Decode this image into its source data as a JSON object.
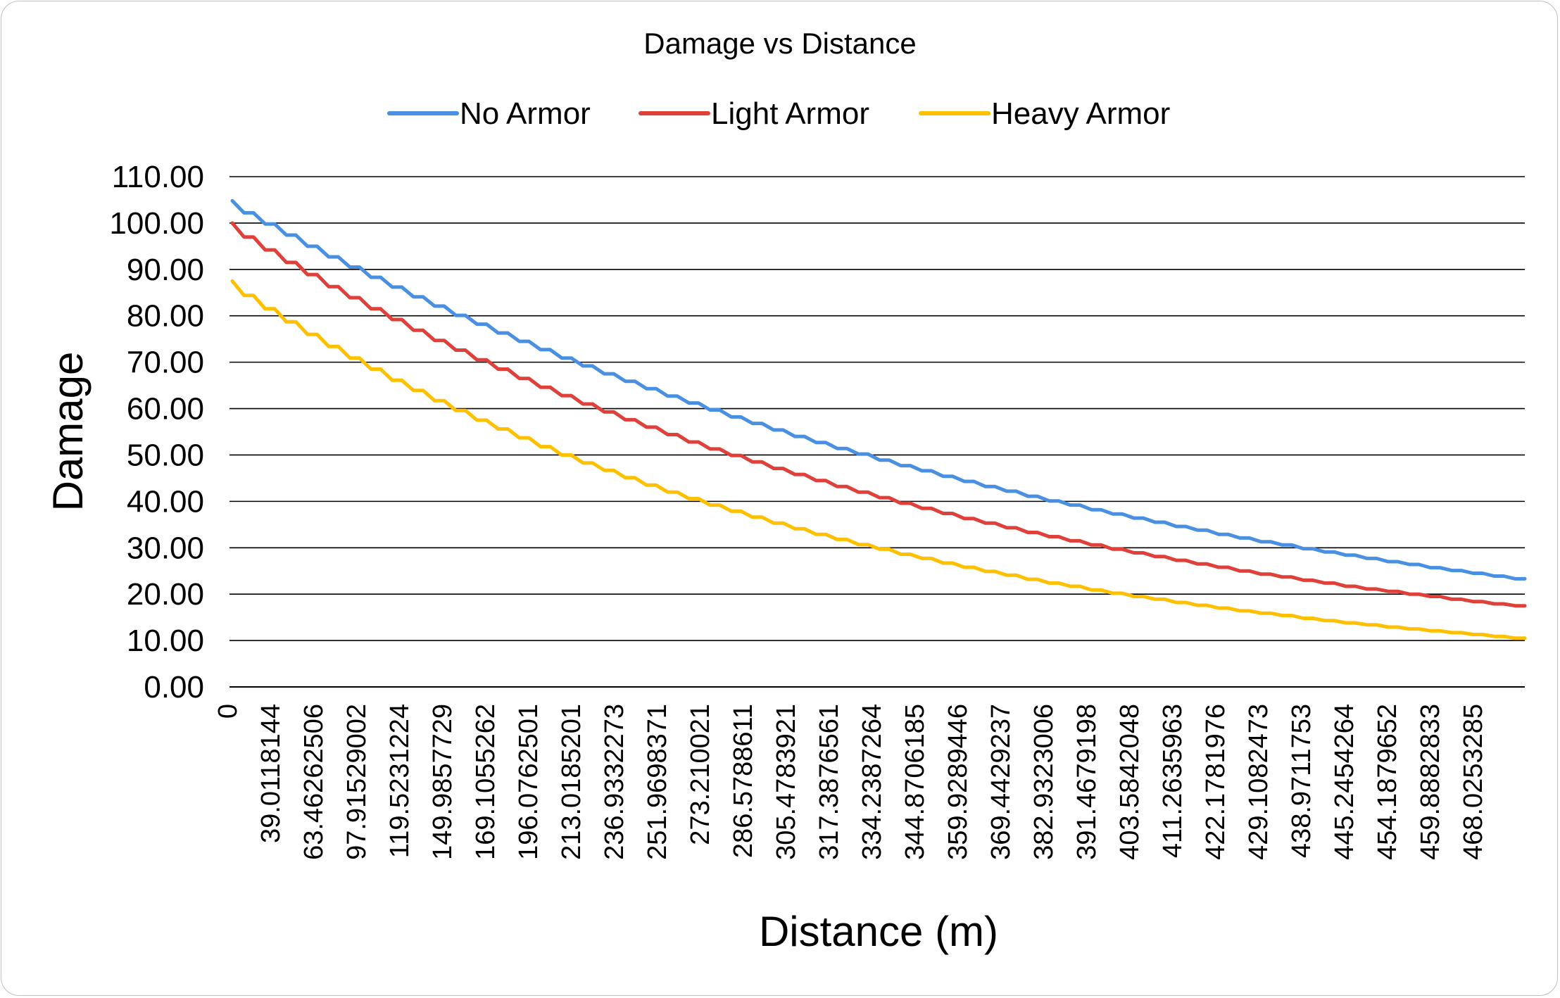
{
  "chart_data": {
    "type": "line",
    "title": "Damage vs Distance",
    "xlabel": "Distance (m)",
    "ylabel": "Damage",
    "ylim": [
      0,
      110
    ],
    "yticks": [
      "0.00",
      "10.00",
      "20.00",
      "30.00",
      "40.00",
      "50.00",
      "60.00",
      "70.00",
      "80.00",
      "90.00",
      "100.00",
      "110.00"
    ],
    "xtick_labels": [
      "0",
      "39.0118144",
      "63.46262506",
      "97.91529002",
      "119.5231224",
      "149.9857729",
      "169.1055262",
      "196.0762501",
      "213.0185201",
      "236.9332273",
      "251.9698371",
      "273.210021",
      "286.5788611",
      "305.4783921",
      "317.3876561",
      "334.2387264",
      "344.8706185",
      "359.9289446",
      "369.4429237",
      "382.9323006",
      "391.4679198",
      "403.5842048",
      "411.2635963",
      "422.1781976",
      "429.1082473",
      "438.9711753",
      "445.2454264",
      "454.1879652",
      "459.8882833",
      "468.0253285"
    ],
    "grid": true,
    "legend_position": "top",
    "series": [
      {
        "name": "No Armor",
        "color": "#4a90e2",
        "values": [
          104.8,
          102.2,
          99.8,
          97.4,
          95.0,
          92.7,
          90.5,
          88.3,
          86.2,
          84.1,
          82.1,
          80.1,
          78.2,
          76.3,
          74.5,
          72.7,
          70.9,
          69.2,
          67.5,
          65.9,
          64.3,
          62.7,
          61.2,
          59.7,
          58.2,
          56.8,
          55.4,
          54.0,
          52.7,
          51.4,
          50.2,
          48.9,
          47.7,
          46.6,
          45.4,
          44.3,
          43.2,
          42.2,
          41.1,
          40.1,
          39.2,
          38.2,
          37.3,
          36.4,
          35.5,
          34.6,
          33.8,
          32.9,
          32.1,
          31.3,
          30.6,
          29.8,
          29.1,
          28.4,
          27.7,
          27.0,
          26.4,
          25.7,
          25.1,
          24.5,
          23.9,
          23.3
        ]
      },
      {
        "name": "Light Armor",
        "color": "#e0403a",
        "values": [
          100.0,
          97.0,
          94.2,
          91.5,
          88.9,
          86.3,
          83.9,
          81.5,
          79.2,
          76.9,
          74.7,
          72.6,
          70.5,
          68.5,
          66.5,
          64.6,
          62.8,
          61.0,
          59.3,
          57.6,
          56.0,
          54.4,
          52.8,
          51.3,
          49.9,
          48.5,
          47.1,
          45.8,
          44.5,
          43.2,
          42.0,
          40.8,
          39.6,
          38.5,
          37.4,
          36.3,
          35.3,
          34.3,
          33.3,
          32.4,
          31.5,
          30.6,
          29.7,
          28.9,
          28.1,
          27.3,
          26.5,
          25.8,
          25.0,
          24.3,
          23.7,
          23.0,
          22.4,
          21.7,
          21.1,
          20.6,
          20.0,
          19.5,
          18.9,
          18.4,
          17.9,
          17.5
        ]
      },
      {
        "name": "Heavy Armor",
        "color": "#ffc000",
        "values": [
          87.5,
          84.4,
          81.5,
          78.7,
          76.0,
          73.4,
          70.9,
          68.5,
          66.1,
          63.9,
          61.7,
          59.6,
          57.5,
          55.6,
          53.7,
          51.8,
          50.0,
          48.3,
          46.7,
          45.1,
          43.5,
          42.0,
          40.6,
          39.2,
          37.9,
          36.6,
          35.3,
          34.1,
          32.9,
          31.8,
          30.7,
          29.7,
          28.6,
          27.7,
          26.7,
          25.8,
          24.9,
          24.1,
          23.2,
          22.4,
          21.7,
          20.9,
          20.2,
          19.5,
          18.9,
          18.2,
          17.6,
          17.0,
          16.4,
          15.9,
          15.4,
          14.8,
          14.3,
          13.8,
          13.4,
          12.9,
          12.5,
          12.1,
          11.7,
          11.3,
          10.9,
          10.5
        ]
      }
    ]
  }
}
